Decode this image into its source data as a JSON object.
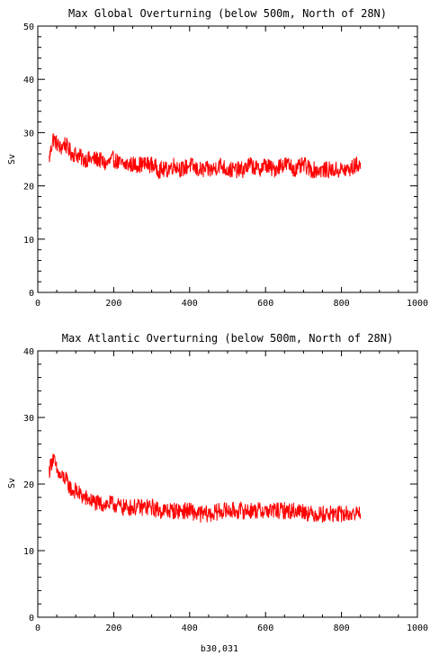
{
  "figure": {
    "footer": "b30,031"
  },
  "chart_data": [
    {
      "type": "line",
      "title": "Max Global Overturning (below 500m, North of 28N)",
      "xlabel": "",
      "ylabel": "Sv",
      "xlim": [
        0,
        1000
      ],
      "ylim": [
        0,
        50
      ],
      "xticks": [
        0,
        200,
        400,
        600,
        800,
        1000
      ],
      "yticks": [
        0,
        10,
        20,
        30,
        40,
        50
      ],
      "grid": false,
      "series": [
        {
          "color": "#ff0000",
          "x": [
            30,
            40,
            50,
            60,
            70,
            80,
            90,
            100,
            120,
            140,
            160,
            180,
            200,
            220,
            240,
            260,
            280,
            300,
            320,
            340,
            360,
            380,
            400,
            420,
            440,
            460,
            480,
            500,
            520,
            540,
            560,
            580,
            600,
            620,
            640,
            660,
            680,
            700,
            720,
            740,
            760,
            780,
            800,
            820,
            840,
            850
          ],
          "y": [
            25,
            29,
            28,
            27,
            28,
            27,
            26,
            26,
            25,
            25,
            25,
            24,
            25,
            24,
            24,
            24,
            24,
            24,
            23,
            23,
            24,
            23,
            24,
            23,
            23,
            23,
            24,
            23,
            23,
            23,
            24,
            23,
            24,
            23,
            24,
            24,
            23,
            24,
            23,
            23,
            23,
            23,
            23,
            23,
            24,
            24
          ],
          "noise_amp": 1.6
        }
      ]
    },
    {
      "type": "line",
      "title": "Max Atlantic Overturning (below 500m, North of 28N)",
      "xlabel": "",
      "ylabel": "Sv",
      "xlim": [
        0,
        1000
      ],
      "ylim": [
        0,
        40
      ],
      "xticks": [
        0,
        200,
        400,
        600,
        800,
        1000
      ],
      "yticks": [
        0,
        10,
        20,
        30,
        40
      ],
      "grid": false,
      "series": [
        {
          "color": "#ff0000",
          "x": [
            30,
            40,
            50,
            60,
            70,
            80,
            90,
            100,
            120,
            140,
            160,
            180,
            200,
            220,
            240,
            260,
            280,
            300,
            320,
            340,
            360,
            380,
            400,
            420,
            440,
            460,
            480,
            500,
            520,
            540,
            560,
            580,
            600,
            620,
            640,
            660,
            680,
            700,
            720,
            740,
            760,
            780,
            800,
            820,
            840,
            850
          ],
          "y": [
            22,
            24,
            22,
            21,
            21,
            20,
            19,
            19,
            18,
            17.5,
            17,
            17,
            17,
            16.5,
            16.5,
            16.5,
            16.5,
            16.5,
            16,
            16,
            16,
            16,
            16,
            15.5,
            15.5,
            15.5,
            16,
            16,
            16,
            16,
            16,
            16,
            16,
            16,
            16,
            16,
            16,
            16,
            15.5,
            15.5,
            15.5,
            15.5,
            15.5,
            15.5,
            15.5,
            16
          ],
          "noise_amp": 1.3
        }
      ]
    }
  ]
}
